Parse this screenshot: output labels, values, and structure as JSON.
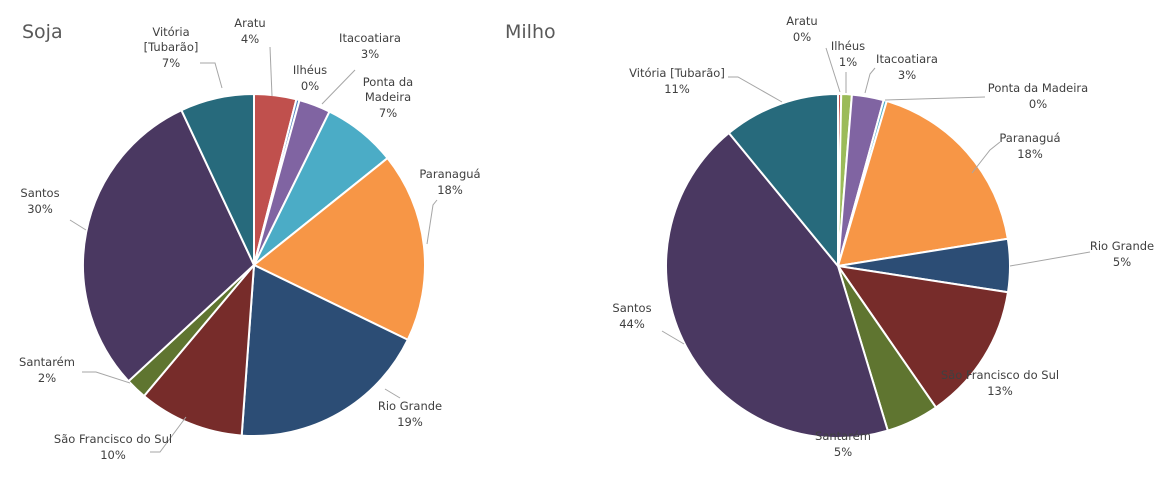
{
  "chart_data": [
    {
      "type": "pie",
      "title": "Soja",
      "slices": [
        {
          "label": "Aratu",
          "value": 4,
          "pct_label": "4%",
          "color": "#c0504d"
        },
        {
          "label": "Ilhéus",
          "value": 0.3,
          "pct_label": "0%",
          "color": "#4f81bd"
        },
        {
          "label": "Itacoatiara",
          "value": 3,
          "pct_label": "3%",
          "color": "#8064a2"
        },
        {
          "label": "Ponta da Madeira",
          "value": 7,
          "pct_label": "7%",
          "color": "#4bacc6"
        },
        {
          "label": "Paranaguá",
          "value": 18,
          "pct_label": "18%",
          "color": "#f79646"
        },
        {
          "label": "Rio Grande",
          "value": 19,
          "pct_label": "19%",
          "color": "#2c4d75"
        },
        {
          "label": "São Francisco do Sul",
          "value": 10,
          "pct_label": "10%",
          "color": "#772c2a"
        },
        {
          "label": "Santarém",
          "value": 2,
          "pct_label": "2%",
          "color": "#5f7530"
        },
        {
          "label": "Santos",
          "value": 30,
          "pct_label": "30%",
          "color": "#4a3861"
        },
        {
          "label": "Vitória [Tubarão]",
          "value": 7,
          "pct_label": "7%",
          "color": "#276a7c"
        }
      ]
    },
    {
      "type": "pie",
      "title": "Milho",
      "slices": [
        {
          "label": "Aratu",
          "value": 0.3,
          "pct_label": "0%",
          "color": "#c0504d"
        },
        {
          "label": "Ilhéus",
          "value": 1,
          "pct_label": "1%",
          "color": "#9bbb59"
        },
        {
          "label": "Itacoatiara",
          "value": 3,
          "pct_label": "3%",
          "color": "#8064a2"
        },
        {
          "label": "Ponta da Madeira",
          "value": 0.3,
          "pct_label": "0%",
          "color": "#4bacc6"
        },
        {
          "label": "Paranaguá",
          "value": 18,
          "pct_label": "18%",
          "color": "#f79646"
        },
        {
          "label": "Rio Grande",
          "value": 5,
          "pct_label": "5%",
          "color": "#2c4d75"
        },
        {
          "label": "São Francisco do Sul",
          "value": 13,
          "pct_label": "13%",
          "color": "#772c2a"
        },
        {
          "label": "Santarém",
          "value": 5,
          "pct_label": "5%",
          "color": "#5f7530"
        },
        {
          "label": "Santos",
          "value": 44,
          "pct_label": "44%",
          "color": "#4a3861"
        },
        {
          "label": "Vitória [Tubarão]",
          "value": 11,
          "pct_label": "11%",
          "color": "#276a7c"
        }
      ]
    }
  ]
}
